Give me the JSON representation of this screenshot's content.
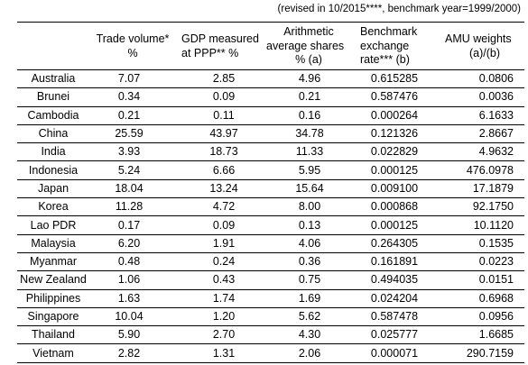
{
  "note": "(revised in 10/2015****, benchmark year=1999/2000)",
  "headers": {
    "trade": [
      "Trade volume*",
      "%"
    ],
    "gdp": [
      "GDP measured",
      "at PPP**  %"
    ],
    "arith": [
      "Arithmetic",
      "average shares",
      "%  (a)"
    ],
    "bench": [
      "Benchmark",
      "exchange",
      "rate***  (b)"
    ],
    "amu": [
      "AMU weights",
      "(a)/(b)"
    ]
  },
  "rows": [
    {
      "country": "Australia",
      "trade": "7.07",
      "gdp": "2.85",
      "arith": "4.96",
      "bench": "0.615285",
      "amu": "0.0806"
    },
    {
      "country": "Brunei",
      "trade": "0.34",
      "gdp": "0.09",
      "arith": "0.21",
      "bench": "0.587476",
      "amu": "0.0036"
    },
    {
      "country": "Cambodia",
      "trade": "0.21",
      "gdp": "0.11",
      "arith": "0.16",
      "bench": "0.000264",
      "amu": "6.1633"
    },
    {
      "country": "China",
      "trade": "25.59",
      "gdp": "43.97",
      "arith": "34.78",
      "bench": "0.121326",
      "amu": "2.8667"
    },
    {
      "country": "India",
      "trade": "3.93",
      "gdp": "18.73",
      "arith": "11.33",
      "bench": "0.022829",
      "amu": "4.9632"
    },
    {
      "country": "Indonesia",
      "trade": "5.24",
      "gdp": "6.66",
      "arith": "5.95",
      "bench": "0.000125",
      "amu": "476.0978"
    },
    {
      "country": "Japan",
      "trade": "18.04",
      "gdp": "13.24",
      "arith": "15.64",
      "bench": "0.009100",
      "amu": "17.1879"
    },
    {
      "country": "Korea",
      "trade": "11.28",
      "gdp": "4.72",
      "arith": "8.00",
      "bench": "0.000868",
      "amu": "92.1750"
    },
    {
      "country": "Lao PDR",
      "trade": "0.17",
      "gdp": "0.09",
      "arith": "0.13",
      "bench": "0.000125",
      "amu": "10.1120"
    },
    {
      "country": "Malaysia",
      "trade": "6.20",
      "gdp": "1.91",
      "arith": "4.06",
      "bench": "0.264305",
      "amu": "0.1535"
    },
    {
      "country": "Myanmar",
      "trade": "0.48",
      "gdp": "0.24",
      "arith": "0.36",
      "bench": "0.161891",
      "amu": "0.0223"
    },
    {
      "country": "New Zealand",
      "trade": "1.06",
      "gdp": "0.43",
      "arith": "0.75",
      "bench": "0.494035",
      "amu": "0.0151"
    },
    {
      "country": "Philippines",
      "trade": "1.63",
      "gdp": "1.74",
      "arith": "1.69",
      "bench": "0.024204",
      "amu": "0.6968"
    },
    {
      "country": "Singapore",
      "trade": "10.04",
      "gdp": "1.20",
      "arith": "5.62",
      "bench": "0.587478",
      "amu": "0.0956"
    },
    {
      "country": "Thailand",
      "trade": "5.90",
      "gdp": "2.70",
      "arith": "4.30",
      "bench": "0.025777",
      "amu": "1.6685"
    },
    {
      "country": "Vietnam",
      "trade": "2.82",
      "gdp": "1.31",
      "arith": "2.06",
      "bench": "0.000071",
      "amu": "290.7159"
    }
  ]
}
